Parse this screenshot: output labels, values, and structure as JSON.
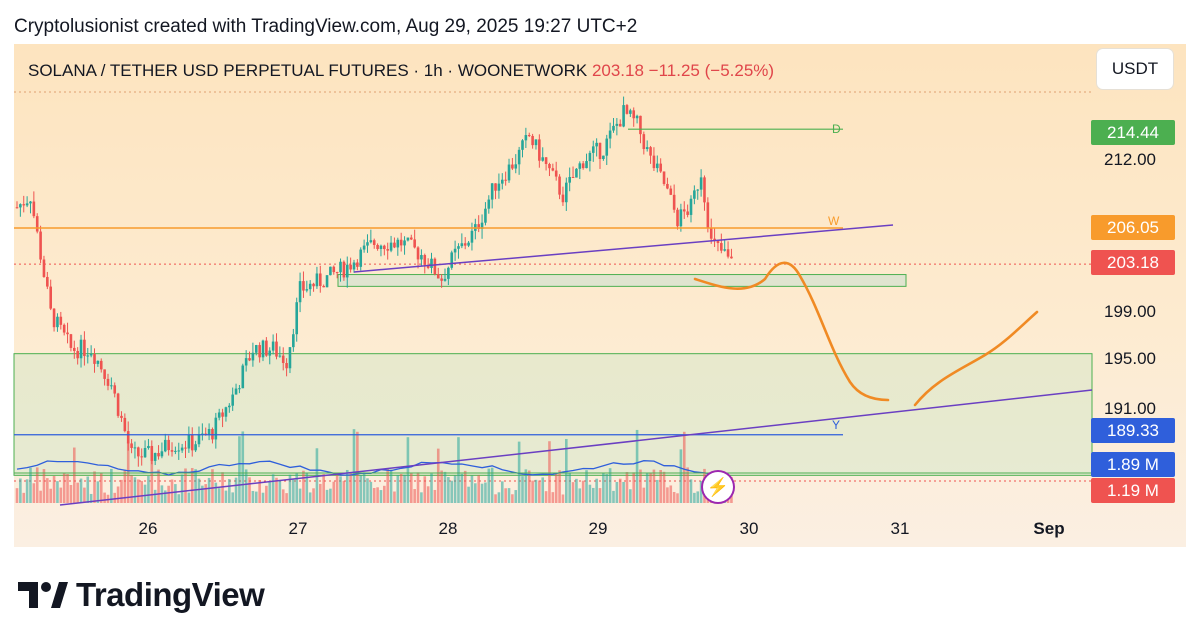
{
  "header": {
    "text": "Cryptolusionist created with TradingView.com, Aug 29, 2025 19:27 UTC+2"
  },
  "title": {
    "symbol": "SOLANA / TETHER USD PERPETUAL FUTURES · 1h · WOONETWORK",
    "price": "203.18",
    "change": "−11.25 (−5.25%)"
  },
  "currency_button": "USDT",
  "footer": {
    "brand": "TradingView"
  },
  "colors": {
    "up": "#26a69a",
    "down": "#ef5350",
    "orange": "#f89b2c",
    "purple": "#6a3fc2",
    "green_line": "#4caf50",
    "blue_line": "#2f5fdb",
    "drawing": "#f08a24"
  },
  "icons": {
    "logo": "tradingview-logo-icon",
    "bolt": "lightning-bolt-icon"
  },
  "chart_data": {
    "type": "candlestick",
    "timeframe": "1h",
    "x_ticks": [
      "26",
      "27",
      "28",
      "29",
      "30",
      "31",
      "Sep"
    ],
    "price_axis_labels": [
      "212.00",
      "199.00",
      "195.00",
      "191.00"
    ],
    "price_tags": [
      {
        "label": "214.44",
        "color": "#4caf50"
      },
      {
        "label": "206.05",
        "color": "#f89b2c"
      },
      {
        "label": "203.18",
        "color": "#ef5350"
      },
      {
        "label": "189.33",
        "color": "#2f5fdb"
      },
      {
        "label": "1.89 M",
        "color": "#2f5fdb"
      },
      {
        "label": "1.19 M",
        "color": "#ef5350"
      }
    ],
    "levels": [
      {
        "name": "D",
        "price": 214.44
      },
      {
        "name": "W",
        "price": 206.05
      },
      {
        "name": "Y",
        "price": 189.33
      }
    ],
    "last_price": 203.18,
    "volume": "1.19 M",
    "volume_ma": "1.89 M"
  }
}
